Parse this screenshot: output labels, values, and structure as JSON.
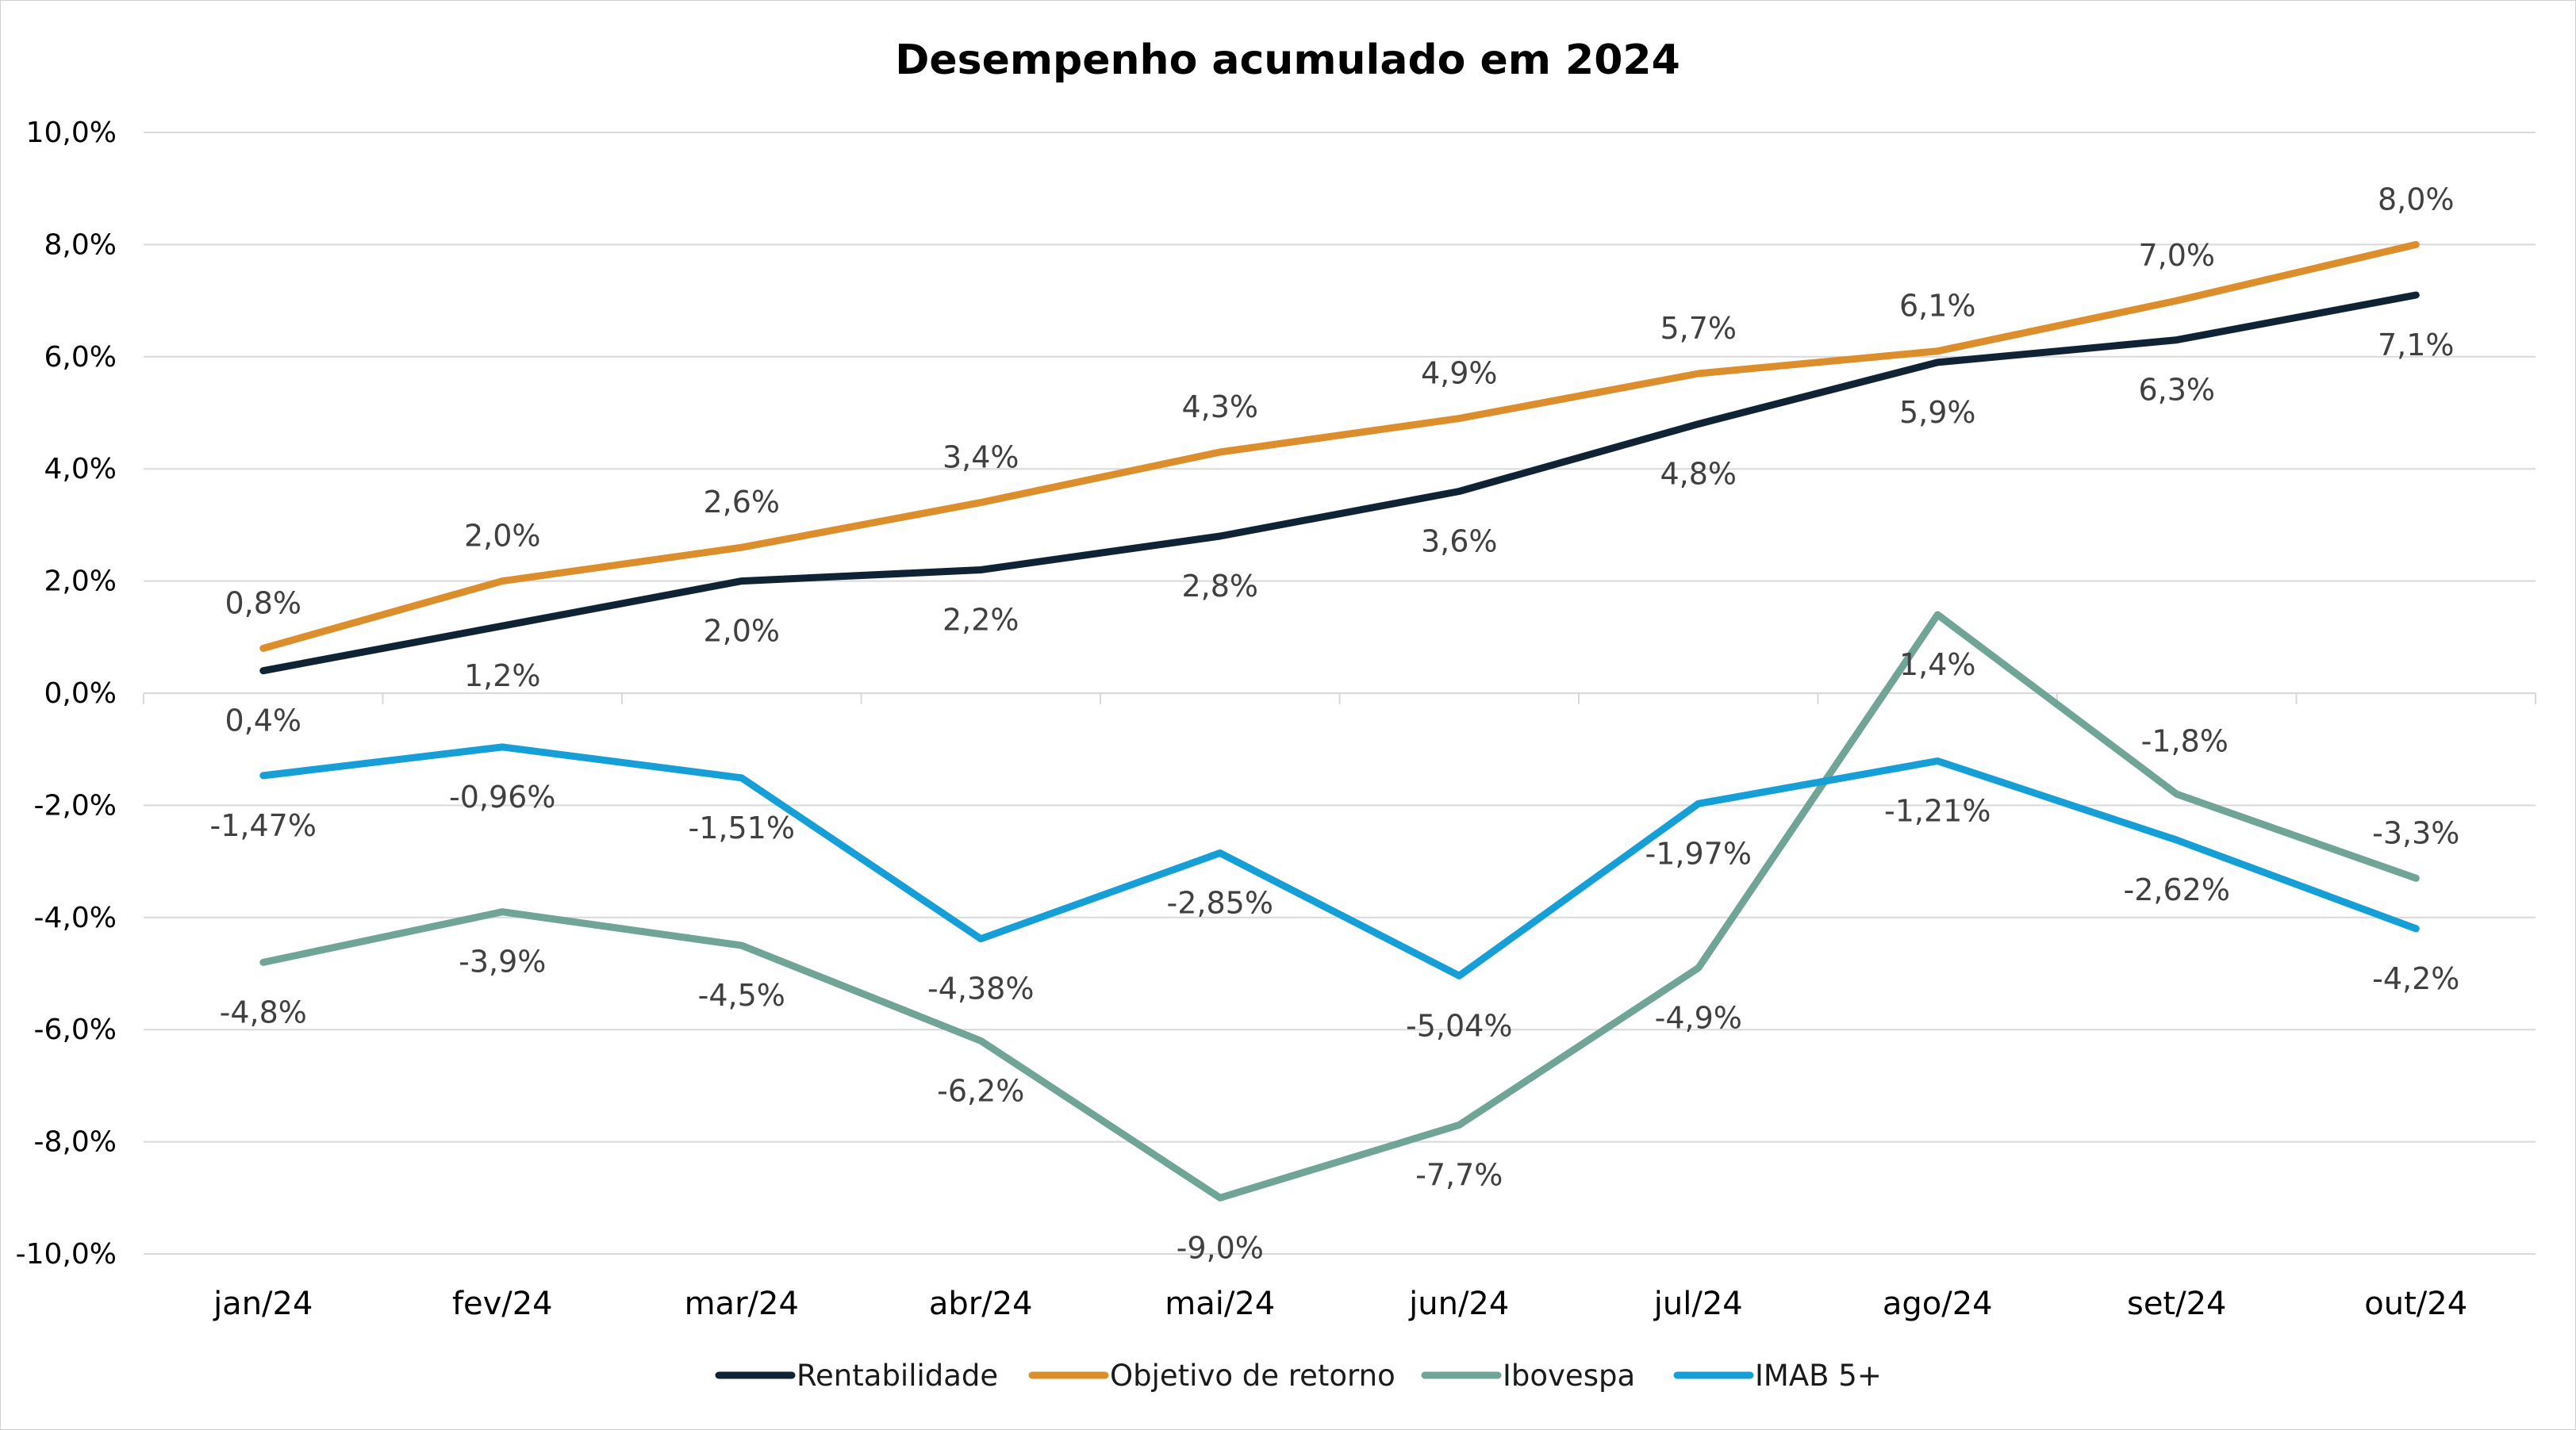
{
  "chart_data": {
    "type": "line",
    "title": "Desempenho acumulado em 2024",
    "categories": [
      "jan/24",
      "fev/24",
      "mar/24",
      "abr/24",
      "mai/24",
      "jun/24",
      "jul/24",
      "ago/24",
      "set/24",
      "out/24"
    ],
    "ylim": [
      -10,
      10
    ],
    "yticks": [
      -10,
      -8,
      -6,
      -4,
      -2,
      0,
      2,
      4,
      6,
      8,
      10
    ],
    "ytick_labels": [
      "-10,0%",
      "-8,0%",
      "-6,0%",
      "-4,0%",
      "-2,0%",
      "0,0%",
      "2,0%",
      "4,0%",
      "6,0%",
      "8,0%",
      "10,0%"
    ],
    "grid": true,
    "legend_position": "bottom",
    "series": [
      {
        "name": "Rentabilidade",
        "color": "#0f2335",
        "values": [
          0.4,
          1.2,
          2.0,
          2.2,
          2.8,
          3.6,
          4.8,
          5.9,
          6.3,
          7.1
        ],
        "labels": [
          "0,4%",
          "1,2%",
          "2,0%",
          "2,2%",
          "2,8%",
          "3,6%",
          "4,8%",
          "5,9%",
          "6,3%",
          "7,1%"
        ],
        "label_position": "below"
      },
      {
        "name": "Objetivo de retorno",
        "color": "#dd8e2c",
        "values": [
          0.8,
          2.0,
          2.6,
          3.4,
          4.3,
          4.9,
          5.7,
          6.1,
          7.0,
          8.0
        ],
        "labels": [
          "0,8%",
          "2,0%",
          "2,6%",
          "3,4%",
          "4,3%",
          "4,9%",
          "5,7%",
          "6,1%",
          "7,0%",
          "8,0%"
        ],
        "label_position": "above"
      },
      {
        "name": "Ibovespa",
        "color": "#6fa496",
        "values": [
          -4.8,
          -3.9,
          -4.5,
          -6.2,
          -9.0,
          -7.7,
          -4.9,
          1.4,
          -1.8,
          -3.3
        ],
        "labels": [
          "-4,8%",
          "-3,9%",
          "-4,5%",
          "-6,2%",
          "-9,0%",
          "-7,7%",
          "-4,9%",
          "1,4%",
          "-1,8%",
          "-3,3%"
        ],
        "label_position": "mixed"
      },
      {
        "name": "IMAB 5+",
        "color": "#159fd6",
        "values": [
          -1.47,
          -0.96,
          -1.51,
          -4.38,
          -2.85,
          -5.04,
          -1.97,
          -1.21,
          -2.62,
          -4.2
        ],
        "labels": [
          "-1,47%",
          "-0,96%",
          "-1,51%",
          "-4,38%",
          "-2,85%",
          "-5,04%",
          "-1,97%",
          "-1,21%",
          "-2,62%",
          "-4,2%"
        ],
        "label_position": "below"
      }
    ]
  }
}
